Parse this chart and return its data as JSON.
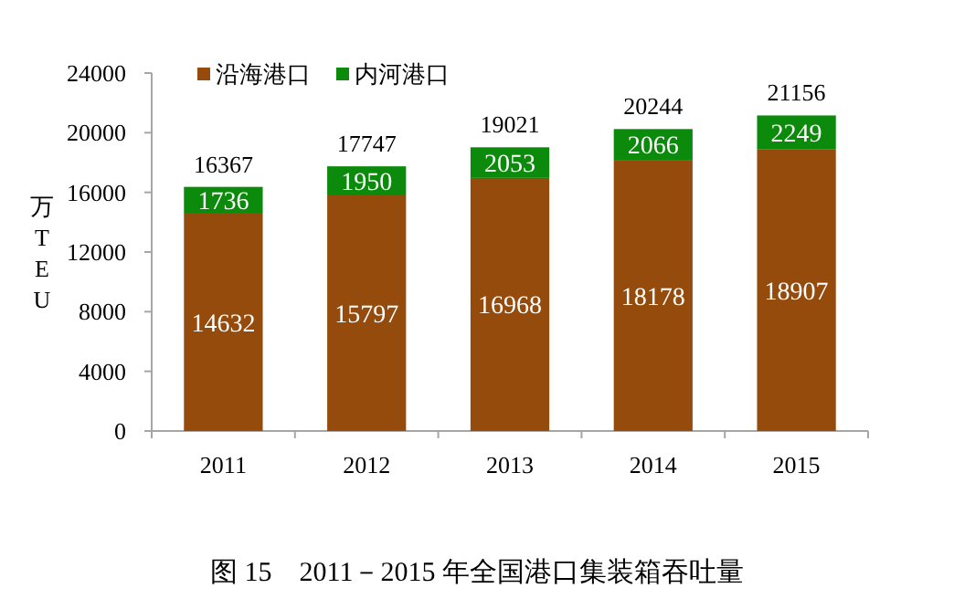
{
  "chart_data": {
    "type": "bar",
    "stacked": true,
    "categories": [
      "2011",
      "2012",
      "2013",
      "2014",
      "2015"
    ],
    "series": [
      {
        "name": "沿海港口",
        "color": "#954b0b",
        "values": [
          14632,
          15797,
          16968,
          18178,
          18907
        ]
      },
      {
        "name": "内河港口",
        "color": "#0b8a0b",
        "values": [
          1736,
          1950,
          2053,
          2066,
          2249
        ]
      }
    ],
    "totals": [
      "16367",
      "17747",
      "19021",
      "20244",
      "21156"
    ],
    "data_labels": true,
    "ylim": [
      0,
      24000
    ],
    "yticks": [
      0,
      4000,
      8000,
      12000,
      16000,
      20000,
      24000
    ],
    "ylabel": "万TEU",
    "legend": "top left",
    "annotations": [
      "图 15　2011－2015 年全国港口集装箱吞吐量"
    ]
  }
}
